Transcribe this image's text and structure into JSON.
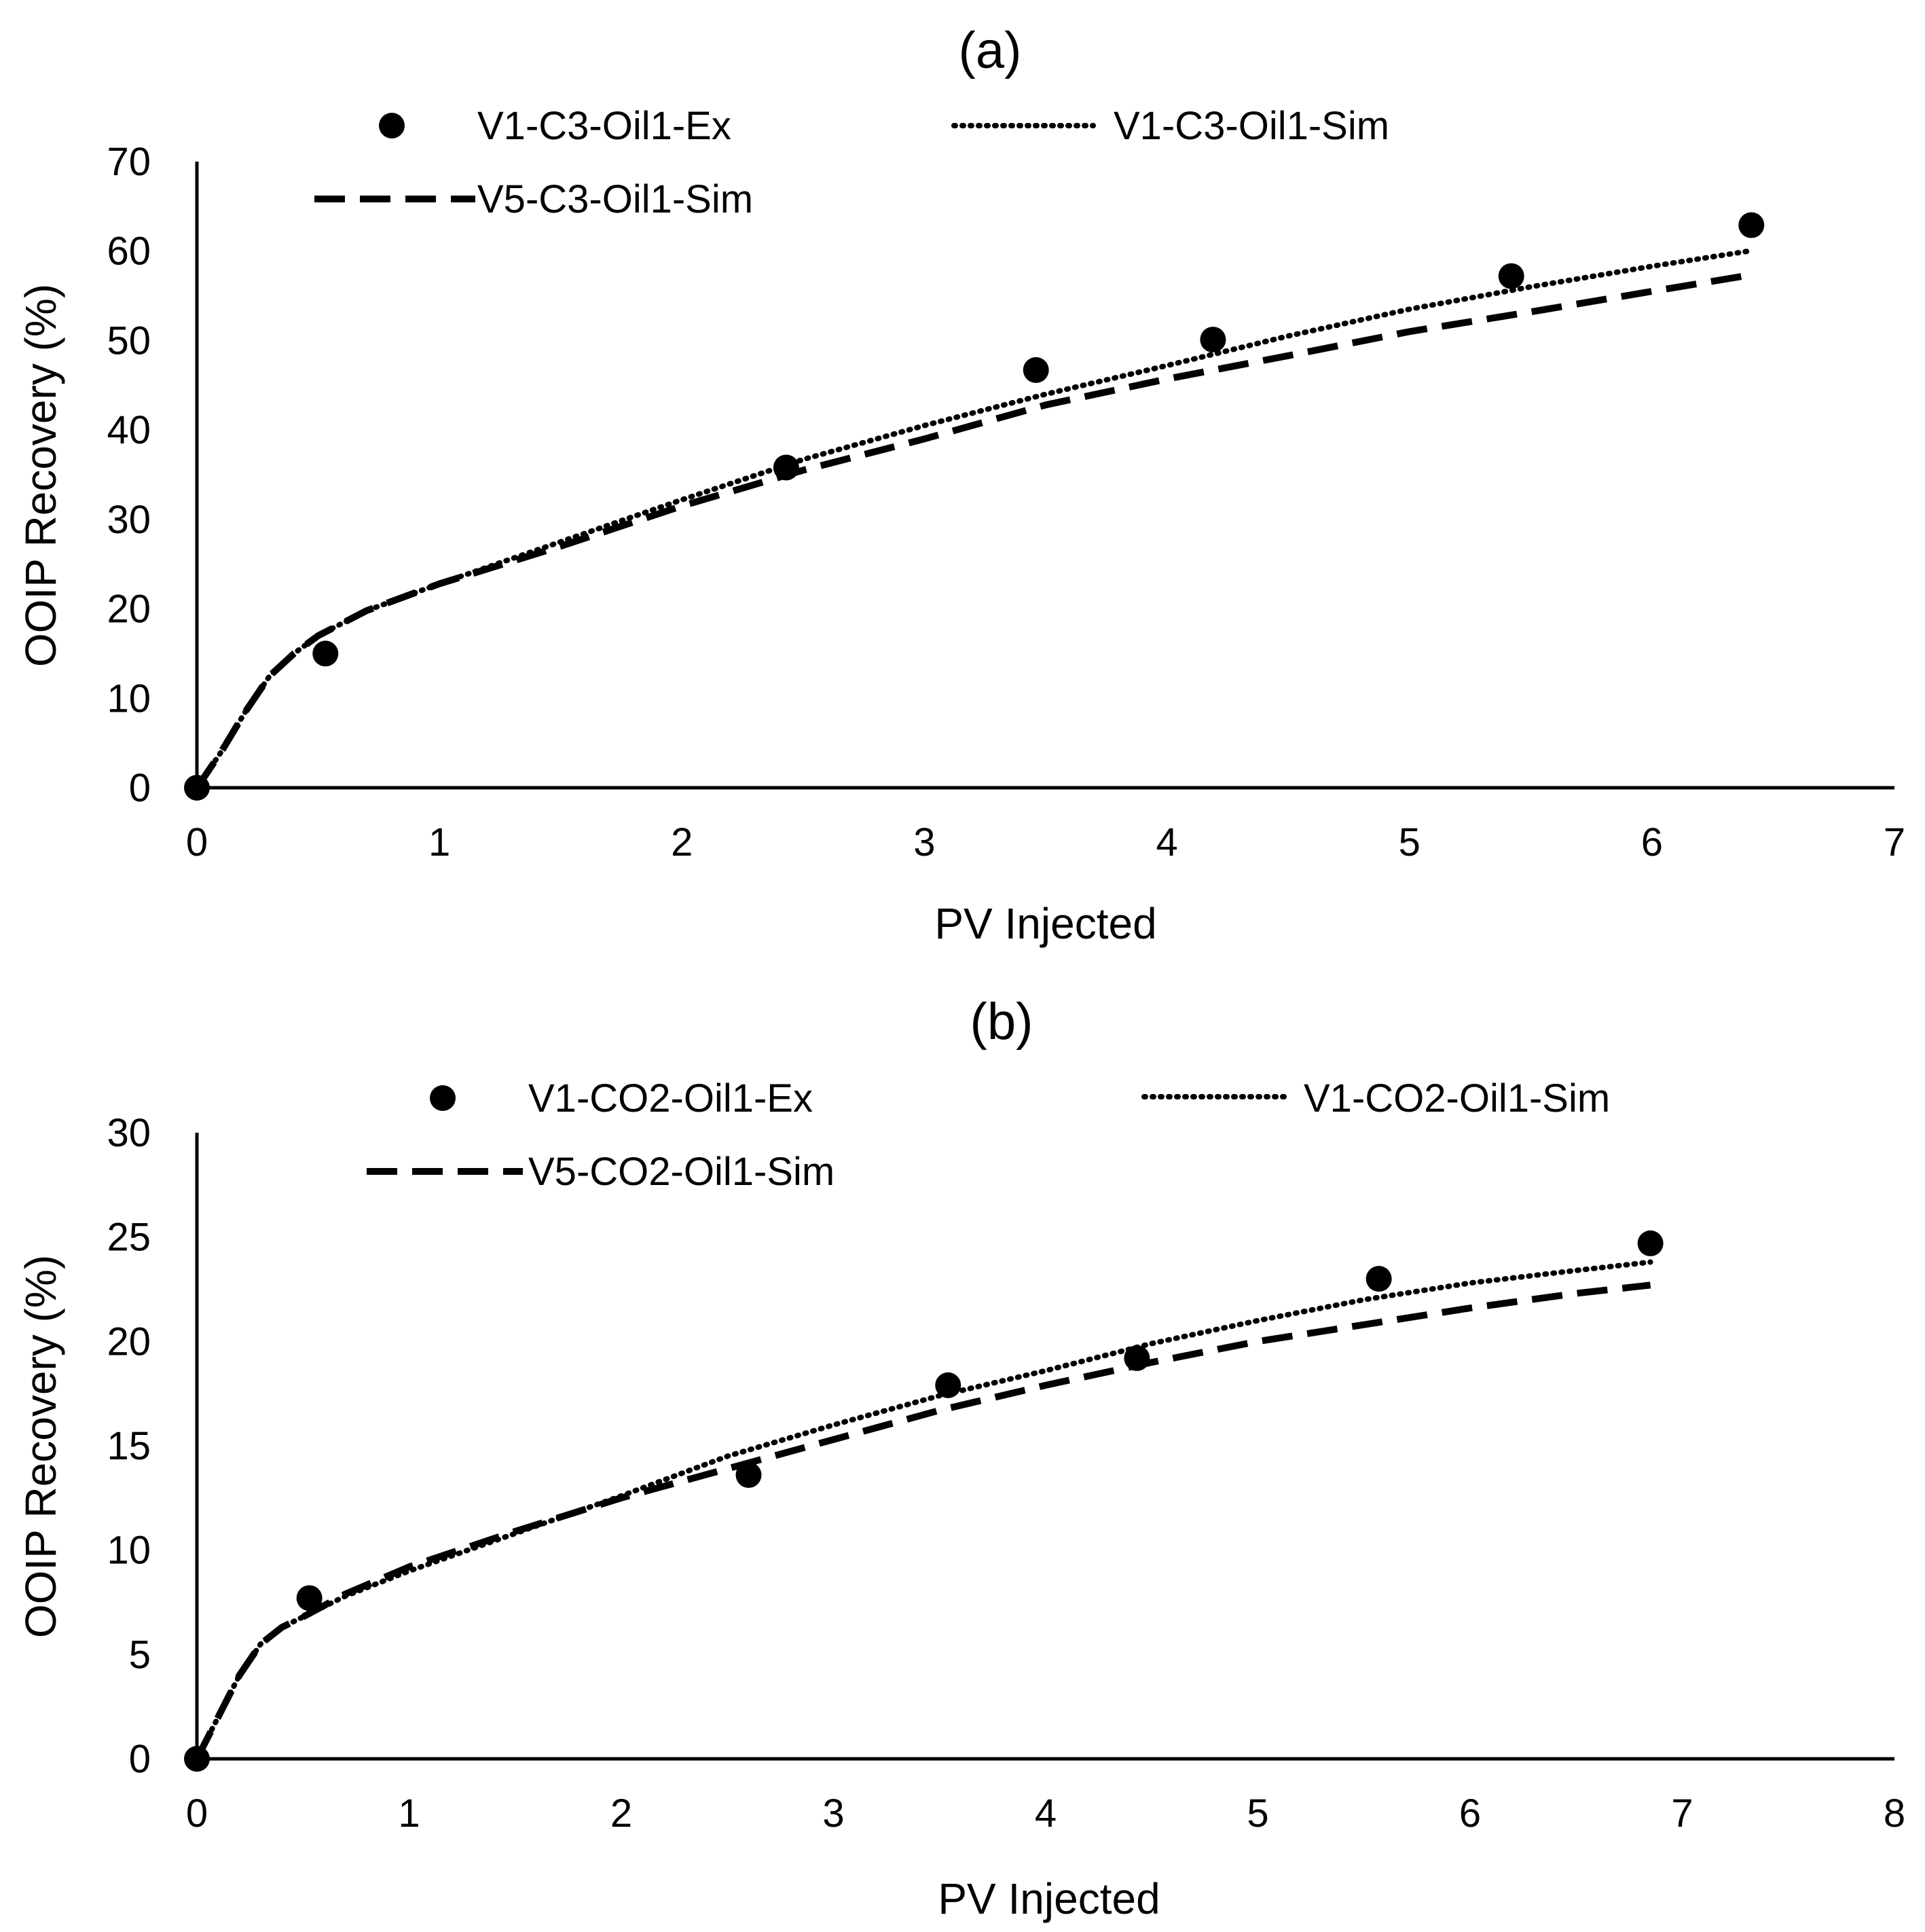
{
  "chart_data": [
    {
      "id": "a",
      "type": "scatter",
      "title": "(a)",
      "xlabel": "PV Injected",
      "ylabel": "OOIP Recovery (%)",
      "xlim": [
        0,
        7
      ],
      "ylim": [
        0,
        70
      ],
      "xticks": [
        0,
        1,
        2,
        3,
        4,
        5,
        6,
        7
      ],
      "yticks": [
        0,
        10,
        20,
        30,
        40,
        50,
        60,
        70
      ],
      "grid": false,
      "legend_position": "top",
      "series": [
        {
          "name": "V1-C3-Oil1-Ex",
          "style": "markers",
          "color": "#000000",
          "x": [
            0,
            0.53,
            2.43,
            3.46,
            4.19,
            5.42,
            6.41
          ],
          "y": [
            0,
            15,
            35.8,
            46.7,
            50.1,
            57.2,
            62.9
          ]
        },
        {
          "name": "V1-C3-Oil1-Sim",
          "style": "dotted",
          "color": "#000000",
          "x": [
            0,
            0.1,
            0.2,
            0.3,
            0.4,
            0.5,
            0.7,
            1.0,
            1.5,
            2.0,
            2.5,
            3.0,
            3.5,
            4.0,
            4.5,
            5.0,
            5.5,
            6.0,
            6.4
          ],
          "y": [
            0,
            4,
            8.5,
            12.5,
            15,
            17,
            19.8,
            22.8,
            27.5,
            32.2,
            36.7,
            40.5,
            44,
            47.2,
            50.5,
            53.5,
            56,
            58.3,
            60
          ]
        },
        {
          "name": "V5-C3-Oil1-Sim",
          "style": "dashed",
          "color": "#000000",
          "x": [
            0,
            0.1,
            0.2,
            0.3,
            0.4,
            0.5,
            0.7,
            1.0,
            1.5,
            2.0,
            2.5,
            3.0,
            3.5,
            4.0,
            4.5,
            5.0,
            5.5,
            6.0,
            6.4
          ],
          "y": [
            0,
            4,
            8.5,
            12.5,
            15,
            17,
            19.8,
            22.8,
            27,
            31.5,
            35.5,
            39,
            42.8,
            45.7,
            48.3,
            51,
            53.2,
            55.5,
            57.3
          ]
        }
      ]
    },
    {
      "id": "b",
      "type": "scatter",
      "title": "(b)",
      "xlabel": "PV Injected",
      "ylabel": "OOIP Recovery (%)",
      "xlim": [
        0,
        8
      ],
      "ylim": [
        0,
        30
      ],
      "xticks": [
        0,
        1,
        2,
        3,
        4,
        5,
        6,
        7,
        8
      ],
      "yticks": [
        0,
        5,
        10,
        15,
        20,
        25,
        30
      ],
      "grid": false,
      "legend_position": "top",
      "series": [
        {
          "name": "V1-CO2-Oil1-Ex",
          "style": "markers",
          "color": "#000000",
          "x": [
            0,
            0.53,
            2.6,
            3.54,
            4.43,
            5.57,
            6.85
          ],
          "y": [
            0,
            7.7,
            13.6,
            17.9,
            19.2,
            23,
            24.7
          ]
        },
        {
          "name": "V1-CO2-Oil1-Sim",
          "style": "dotted",
          "color": "#000000",
          "x": [
            0,
            0.1,
            0.2,
            0.3,
            0.4,
            0.5,
            0.7,
            1.0,
            1.5,
            2.0,
            2.5,
            3.0,
            3.5,
            4.0,
            4.5,
            5.0,
            5.5,
            6.0,
            6.5,
            6.85
          ],
          "y": [
            0,
            2,
            4,
            5.5,
            6.3,
            6.8,
            7.8,
            9,
            10.8,
            12.6,
            14.5,
            16,
            17.4,
            18.6,
            19.9,
            21,
            22,
            22.8,
            23.4,
            23.8
          ]
        },
        {
          "name": "V5-CO2-Oil1-Sim",
          "style": "dashed",
          "color": "#000000",
          "x": [
            0,
            0.1,
            0.2,
            0.3,
            0.4,
            0.5,
            0.7,
            1.0,
            1.5,
            2.0,
            2.5,
            3.0,
            3.5,
            4.0,
            4.5,
            5.0,
            5.5,
            6.0,
            6.5,
            6.85
          ],
          "y": [
            0,
            2,
            4,
            5.5,
            6.3,
            6.8,
            7.9,
            9.2,
            10.9,
            12.5,
            13.9,
            15.3,
            16.7,
            17.9,
            19,
            20,
            20.8,
            21.6,
            22.3,
            22.7
          ]
        }
      ]
    }
  ]
}
